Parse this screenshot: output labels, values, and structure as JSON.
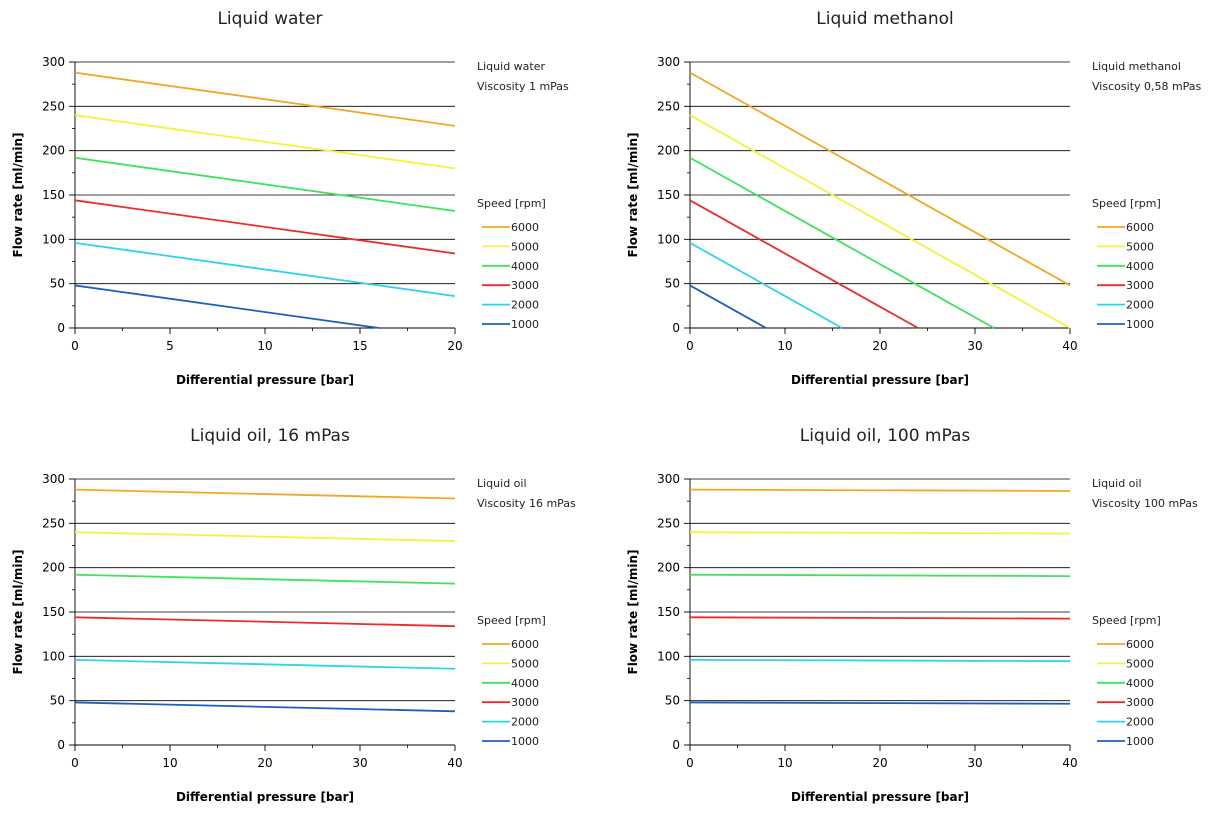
{
  "legend_title": "Speed [rpm]",
  "colors": {
    "6000": "#f5a623",
    "5000": "#f3f339",
    "4000": "#3ee35a",
    "3000": "#ee2b2b",
    "2000": "#2fd3ec",
    "1000": "#1c5fc4"
  },
  "chart_data": [
    {
      "type": "line",
      "title": "Liquid water",
      "xlabel": "Differential pressure [bar]",
      "ylabel": "Flow rate [ml/min]",
      "xlim": [
        0,
        20
      ],
      "ylim": [
        0,
        300
      ],
      "xticks": [
        0,
        5,
        10,
        15,
        20
      ],
      "yticks": [
        0,
        50,
        100,
        150,
        200,
        250,
        300
      ],
      "grid": "horizontal",
      "notes": [
        "Liquid water",
        "Viscosity 1 mPas"
      ],
      "legend_title": "Speed [rpm]",
      "legend_position": "right",
      "series": [
        {
          "name": "6000",
          "x": [
            0,
            20
          ],
          "y": [
            288,
            228
          ]
        },
        {
          "name": "5000",
          "x": [
            0,
            20
          ],
          "y": [
            240,
            180
          ]
        },
        {
          "name": "4000",
          "x": [
            0,
            20
          ],
          "y": [
            192,
            132
          ]
        },
        {
          "name": "3000",
          "x": [
            0,
            20
          ],
          "y": [
            144,
            84
          ]
        },
        {
          "name": "2000",
          "x": [
            0,
            20
          ],
          "y": [
            96,
            36
          ]
        },
        {
          "name": "1000",
          "x": [
            0,
            16
          ],
          "y": [
            48,
            0
          ]
        }
      ]
    },
    {
      "type": "line",
      "title": "Liquid methanol",
      "xlabel": "Differential pressure [bar]",
      "ylabel": "Flow rate [ml/min]",
      "xlim": [
        0,
        40
      ],
      "ylim": [
        0,
        300
      ],
      "xticks": [
        0,
        10,
        20,
        30,
        40
      ],
      "yticks": [
        0,
        50,
        100,
        150,
        200,
        250,
        300
      ],
      "grid": "horizontal",
      "notes": [
        "Liquid methanol",
        "Viscosity 0,58 mPas"
      ],
      "legend_title": "Speed [rpm]",
      "legend_position": "right",
      "series": [
        {
          "name": "6000",
          "x": [
            0,
            40
          ],
          "y": [
            288,
            48
          ]
        },
        {
          "name": "5000",
          "x": [
            0,
            40
          ],
          "y": [
            240,
            0
          ]
        },
        {
          "name": "4000",
          "x": [
            0,
            32
          ],
          "y": [
            192,
            0
          ]
        },
        {
          "name": "3000",
          "x": [
            0,
            24
          ],
          "y": [
            144,
            0
          ]
        },
        {
          "name": "2000",
          "x": [
            0,
            16
          ],
          "y": [
            96,
            0
          ]
        },
        {
          "name": "1000",
          "x": [
            0,
            8
          ],
          "y": [
            48,
            0
          ]
        }
      ]
    },
    {
      "type": "line",
      "title": "Liquid oil, 16 mPas",
      "xlabel": "Differential pressure [bar]",
      "ylabel": "Flow rate [ml/min]",
      "xlim": [
        0,
        40
      ],
      "ylim": [
        0,
        300
      ],
      "xticks": [
        0,
        10,
        20,
        30,
        40
      ],
      "yticks": [
        0,
        50,
        100,
        150,
        200,
        250,
        300
      ],
      "grid": "horizontal",
      "notes": [
        "Liquid oil",
        "Viscosity 16 mPas"
      ],
      "legend_title": "Speed [rpm]",
      "legend_position": "right",
      "series": [
        {
          "name": "6000",
          "x": [
            0,
            40
          ],
          "y": [
            288,
            278
          ]
        },
        {
          "name": "5000",
          "x": [
            0,
            40
          ],
          "y": [
            240,
            230
          ]
        },
        {
          "name": "4000",
          "x": [
            0,
            40
          ],
          "y": [
            192,
            182
          ]
        },
        {
          "name": "3000",
          "x": [
            0,
            40
          ],
          "y": [
            144,
            134
          ]
        },
        {
          "name": "2000",
          "x": [
            0,
            40
          ],
          "y": [
            96,
            86
          ]
        },
        {
          "name": "1000",
          "x": [
            0,
            40
          ],
          "y": [
            48,
            38
          ]
        }
      ]
    },
    {
      "type": "line",
      "title": "Liquid oil, 100 mPas",
      "xlabel": "Differential pressure [bar]",
      "ylabel": "Flow rate [ml/min]",
      "xlim": [
        0,
        40
      ],
      "ylim": [
        0,
        300
      ],
      "xticks": [
        0,
        10,
        20,
        30,
        40
      ],
      "yticks": [
        0,
        50,
        100,
        150,
        200,
        250,
        300
      ],
      "grid": "horizontal",
      "notes": [
        "Liquid oil",
        "Viscosity 100 mPas"
      ],
      "legend_title": "Speed [rpm]",
      "legend_position": "right",
      "series": [
        {
          "name": "6000",
          "x": [
            0,
            40
          ],
          "y": [
            288,
            286.5
          ]
        },
        {
          "name": "5000",
          "x": [
            0,
            40
          ],
          "y": [
            240,
            238.5
          ]
        },
        {
          "name": "4000",
          "x": [
            0,
            40
          ],
          "y": [
            192,
            190.5
          ]
        },
        {
          "name": "3000",
          "x": [
            0,
            40
          ],
          "y": [
            144,
            142.5
          ]
        },
        {
          "name": "2000",
          "x": [
            0,
            40
          ],
          "y": [
            96,
            94.5
          ]
        },
        {
          "name": "1000",
          "x": [
            0,
            40
          ],
          "y": [
            48,
            46.5
          ]
        }
      ]
    }
  ]
}
